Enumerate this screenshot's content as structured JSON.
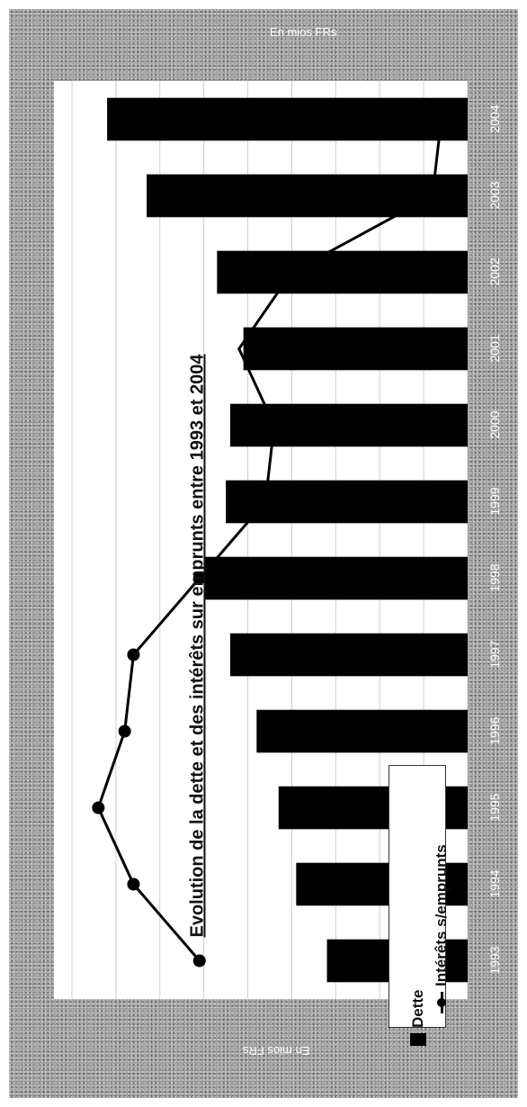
{
  "unit_label": "En mios FRs",
  "chart_data": {
    "type": "bar",
    "title": "Evolution de la dette et des intérêts sur emprunts entre 1993 et 2004",
    "categories": [
      "1993",
      "1994",
      "1995",
      "1996",
      "1997",
      "1998",
      "1999",
      "2000",
      "2001",
      "2002",
      "2003",
      "2004"
    ],
    "series": [
      {
        "name": "Dette",
        "kind": "bar",
        "values": [
          32,
          39,
          43,
          48,
          54,
          60,
          55,
          54,
          51,
          57,
          73,
          82
        ]
      },
      {
        "name": "Intérêts s/emprunts",
        "kind": "line",
        "values": [
          61,
          76,
          84,
          78,
          76,
          61,
          46,
          44,
          52,
          40,
          8,
          6
        ]
      }
    ],
    "ylim": [
      0,
      90
    ],
    "grid": true,
    "legend_position": "bottom-left",
    "xlabel": "",
    "ylabel": ""
  },
  "colors": {
    "bar": "#000000",
    "line": "#000000",
    "grid": "#cfcfcf",
    "frame": "#9a9a9a"
  }
}
